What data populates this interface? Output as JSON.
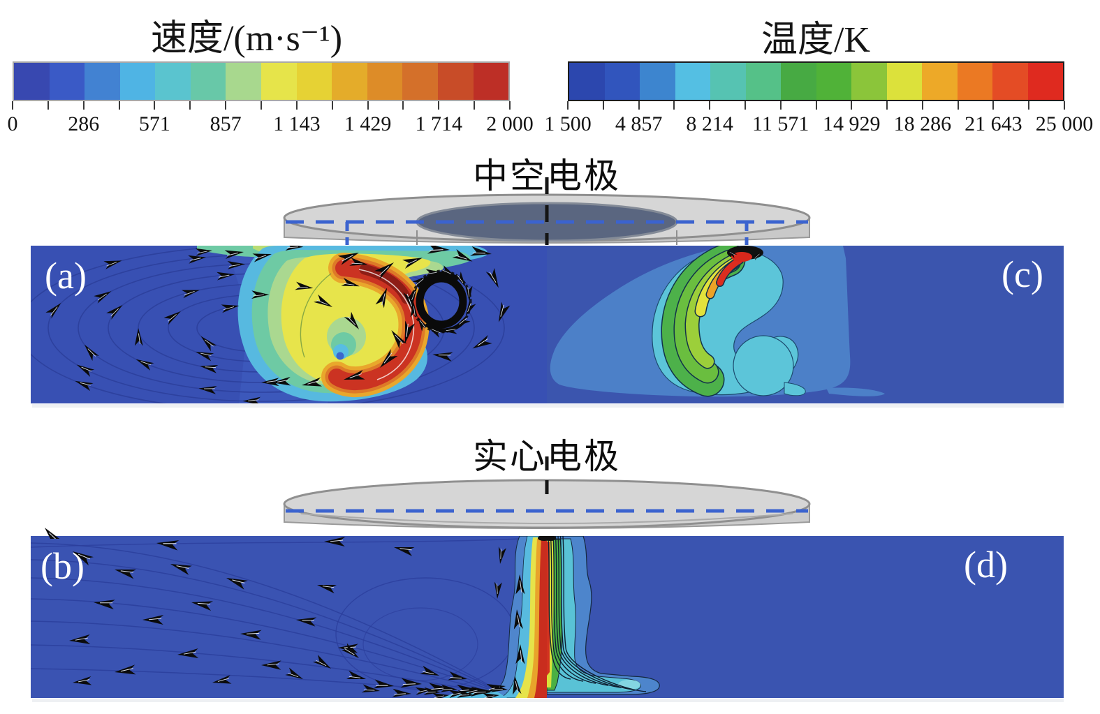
{
  "style": {
    "panel_backgrounds": {
      "a": "#3850b3",
      "b": "#3a53b2",
      "c": "#3b55ae",
      "d": "#3a54b0"
    },
    "dashed_guide_blue": "#3b63cf",
    "centerline_black": "#151515",
    "electrode_gray": "#d6d6d6",
    "hollow_bore_dark": "#5a6680"
  },
  "sections": [
    {
      "id": "hollow",
      "label": "中空电极",
      "panels": [
        {
          "letter": "(a)",
          "field": "velocity"
        },
        {
          "letter": "(c)",
          "field": "temperature"
        }
      ]
    },
    {
      "id": "solid",
      "label": "实心电极",
      "panels": [
        {
          "letter": "(b)",
          "field": "velocity"
        },
        {
          "letter": "(d)",
          "field": "temperature"
        }
      ]
    }
  ],
  "chart_data": [
    {
      "type": "heatmap",
      "title": "速度/(m·s⁻¹)",
      "quantity": "velocity",
      "unit": "m·s⁻¹",
      "range": [
        0,
        2000
      ],
      "colorbar_tick_values": [
        0,
        286,
        571,
        857,
        1143,
        1429,
        1714,
        2000
      ],
      "colorbar_tick_labels": [
        "0",
        "286",
        "571",
        "857",
        "1 143",
        "1 429",
        "1 714",
        "2 000"
      ],
      "colorbar_colors": [
        "#3848b0",
        "#3a5ac6",
        "#4282d2",
        "#4fb4e4",
        "#5ac4cf",
        "#68c8a8",
        "#a8d88e",
        "#e6e44a",
        "#e6d234",
        "#e4ac2a",
        "#dd8c28",
        "#d4702a",
        "#c84c28",
        "#bd2f26"
      ],
      "legend_position": "top-left",
      "panels": [
        {
          "letter": "(a)",
          "electrode": "中空电极",
          "content": "recirculating vortex flow with a high-speed crescent jet under the hollow electrode, core near 2 000 m·s⁻¹"
        },
        {
          "letter": "(b)",
          "electrode": "实心电极",
          "content": "streamlines converging into a narrow high-speed axial jet on the centerline, core near 2 000 m·s⁻¹"
        }
      ]
    },
    {
      "type": "heatmap",
      "title": "温度/K",
      "quantity": "temperature",
      "unit": "K",
      "range": [
        1500,
        25000
      ],
      "colorbar_tick_values": [
        1500,
        4857,
        8214,
        11571,
        14929,
        18286,
        21643,
        25000
      ],
      "colorbar_tick_labels": [
        "1 500",
        "4 857",
        "8 214",
        "11 571",
        "14 929",
        "18 286",
        "21 643",
        "25 000"
      ],
      "colorbar_colors": [
        "#2c47ae",
        "#3155bd",
        "#3d85cf",
        "#54bfe3",
        "#56c3b2",
        "#55c188",
        "#47aa43",
        "#50b238",
        "#8bc53a",
        "#dce13b",
        "#eda928",
        "#eb7923",
        "#e44c25",
        "#df2a1f"
      ],
      "legend_position": "top-right",
      "panels": [
        {
          "letter": "(c)",
          "electrode": "中空电极",
          "content": "curved arc plume below the hollow electrode with hot core near 25 000 K at the electrode inner edge"
        },
        {
          "letter": "(d)",
          "electrode": "实心电极",
          "content": "thin vertical arc column on the centerline with nested isotherms spreading along the anode"
        }
      ]
    }
  ]
}
